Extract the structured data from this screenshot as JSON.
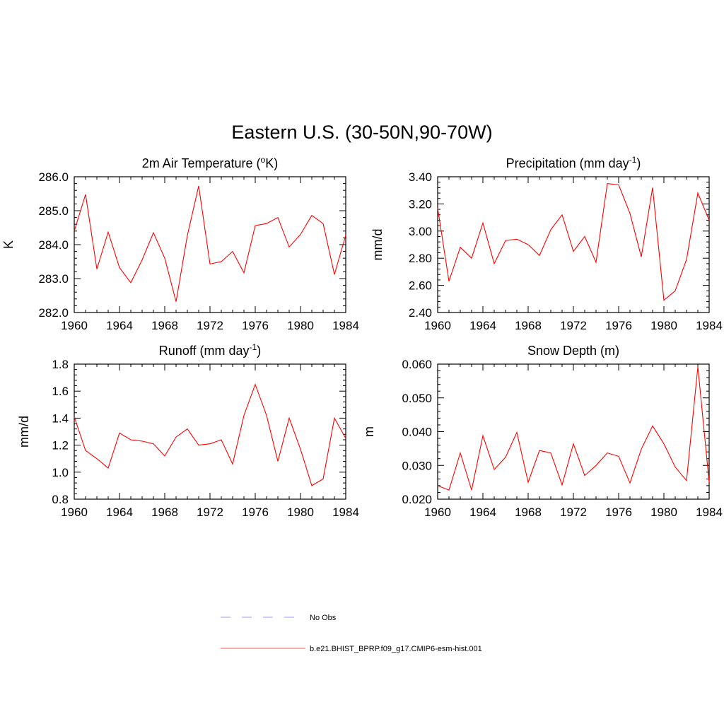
{
  "title": "Eastern U.S. (30-50N,90-70W)",
  "chart_data": [
    {
      "type": "line",
      "title": "2m Air Temperature (",
      "title_sup": "o",
      "title_after": "K)",
      "xlabel": "",
      "ylabel": "K",
      "xlim": [
        1960,
        1984
      ],
      "ylim": [
        282.0,
        286.0
      ],
      "xticks": [
        "1960",
        "1964",
        "1968",
        "1972",
        "1976",
        "1980",
        "1984"
      ],
      "yticks": [
        "282.0",
        "283.0",
        "284.0",
        "285.0",
        "286.0"
      ],
      "x": [
        1960,
        1961,
        1962,
        1963,
        1964,
        1965,
        1966,
        1967,
        1968,
        1969,
        1970,
        1971,
        1972,
        1973,
        1974,
        1975,
        1976,
        1977,
        1978,
        1979,
        1980,
        1981,
        1982,
        1983,
        1984
      ],
      "series": [
        {
          "values": [
            284.4,
            285.48,
            283.28,
            284.37,
            283.32,
            282.88,
            283.55,
            284.35,
            283.6,
            282.32,
            284.27,
            285.73,
            283.43,
            283.5,
            283.8,
            283.17,
            284.56,
            284.62,
            284.8,
            283.93,
            284.3,
            284.86,
            284.62,
            283.12,
            284.28
          ],
          "color": "#ff0000"
        }
      ]
    },
    {
      "type": "line",
      "title": "Precipitation (mm day",
      "title_sup": "-1",
      "title_after": ")",
      "xlabel": "",
      "ylabel": "mm/d",
      "xlim": [
        1960,
        1984
      ],
      "ylim": [
        2.4,
        3.4
      ],
      "xticks": [
        "1960",
        "1964",
        "1968",
        "1972",
        "1976",
        "1980",
        "1984"
      ],
      "yticks": [
        "2.40",
        "2.60",
        "2.80",
        "3.00",
        "3.20",
        "3.40"
      ],
      "x": [
        1960,
        1961,
        1962,
        1963,
        1964,
        1965,
        1966,
        1967,
        1968,
        1969,
        1970,
        1971,
        1972,
        1973,
        1974,
        1975,
        1976,
        1977,
        1978,
        1979,
        1980,
        1981,
        1982,
        1983,
        1984
      ],
      "series": [
        {
          "values": [
            3.17,
            2.63,
            2.88,
            2.8,
            3.06,
            2.76,
            2.93,
            2.94,
            2.9,
            2.82,
            3.01,
            3.12,
            2.85,
            2.96,
            2.77,
            3.35,
            3.34,
            3.13,
            2.81,
            3.32,
            2.49,
            2.56,
            2.79,
            3.28,
            3.08
          ],
          "color": "#ff0000"
        }
      ]
    },
    {
      "type": "line",
      "title": "Runoff (mm day",
      "title_sup": "-1",
      "title_after": ")",
      "xlabel": "",
      "ylabel": "mm/d",
      "xlim": [
        1960,
        1984
      ],
      "ylim": [
        0.8,
        1.8
      ],
      "xticks": [
        "1960",
        "1964",
        "1968",
        "1972",
        "1976",
        "1980",
        "1984"
      ],
      "yticks": [
        "0.8",
        "1.0",
        "1.2",
        "1.4",
        "1.6",
        "1.8"
      ],
      "x": [
        1960,
        1961,
        1962,
        1963,
        1964,
        1965,
        1966,
        1967,
        1968,
        1969,
        1970,
        1971,
        1972,
        1973,
        1974,
        1975,
        1976,
        1977,
        1978,
        1979,
        1980,
        1981,
        1982,
        1983,
        1984
      ],
      "series": [
        {
          "values": [
            1.41,
            1.16,
            1.1,
            1.03,
            1.29,
            1.24,
            1.23,
            1.21,
            1.12,
            1.26,
            1.32,
            1.2,
            1.21,
            1.24,
            1.06,
            1.42,
            1.65,
            1.42,
            1.08,
            1.4,
            1.17,
            0.9,
            0.95,
            1.4,
            1.25
          ],
          "color": "#ff0000"
        }
      ]
    },
    {
      "type": "line",
      "title": "Snow Depth (m)",
      "title_sup": "",
      "title_after": "",
      "xlabel": "",
      "ylabel": "m",
      "xlim": [
        1960,
        1984
      ],
      "ylim": [
        0.02,
        0.06
      ],
      "xticks": [
        "1960",
        "1964",
        "1968",
        "1972",
        "1976",
        "1980",
        "1984"
      ],
      "yticks": [
        "0.020",
        "0.030",
        "0.040",
        "0.050",
        "0.060"
      ],
      "x": [
        1960,
        1961,
        1962,
        1963,
        1964,
        1965,
        1966,
        1967,
        1968,
        1969,
        1970,
        1971,
        1972,
        1973,
        1974,
        1975,
        1976,
        1977,
        1978,
        1979,
        1980,
        1981,
        1982,
        1983,
        1984
      ],
      "series": [
        {
          "values": [
            0.024,
            0.0227,
            0.0337,
            0.0227,
            0.0388,
            0.0288,
            0.0324,
            0.0398,
            0.025,
            0.0344,
            0.0337,
            0.0242,
            0.0364,
            0.027,
            0.03,
            0.0337,
            0.0327,
            0.0248,
            0.0348,
            0.0417,
            0.0364,
            0.0295,
            0.0255,
            0.0592,
            0.025
          ],
          "color": "#ff0000"
        }
      ]
    }
  ],
  "legend": {
    "entries": [
      {
        "label": "No Obs",
        "color": "#9a9aff",
        "style": "dashed"
      },
      {
        "label": "b.e21.BHIST_BPRP.f09_g17.CMIP6-esm-hist.001",
        "color": "#ff5555",
        "style": "solid"
      }
    ]
  }
}
